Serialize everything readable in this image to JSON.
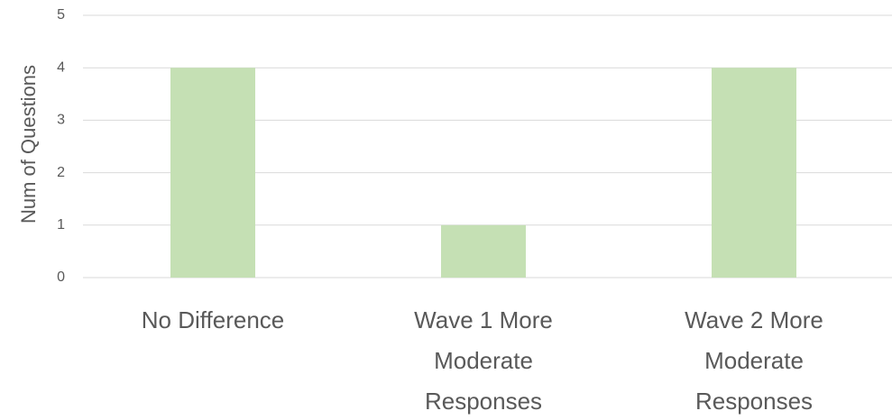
{
  "chart_data": {
    "type": "bar",
    "y_label": "Num of Questions",
    "categories": [
      "No Difference",
      "Wave 1 More Moderate Responses",
      "Wave 2 More Moderate Responses"
    ],
    "values": [
      4,
      1,
      4
    ],
    "color": "#c5e0b4",
    "ylim": [
      0,
      5
    ],
    "yticks": [
      0,
      1,
      2,
      3,
      4,
      5
    ],
    "grid": true
  }
}
